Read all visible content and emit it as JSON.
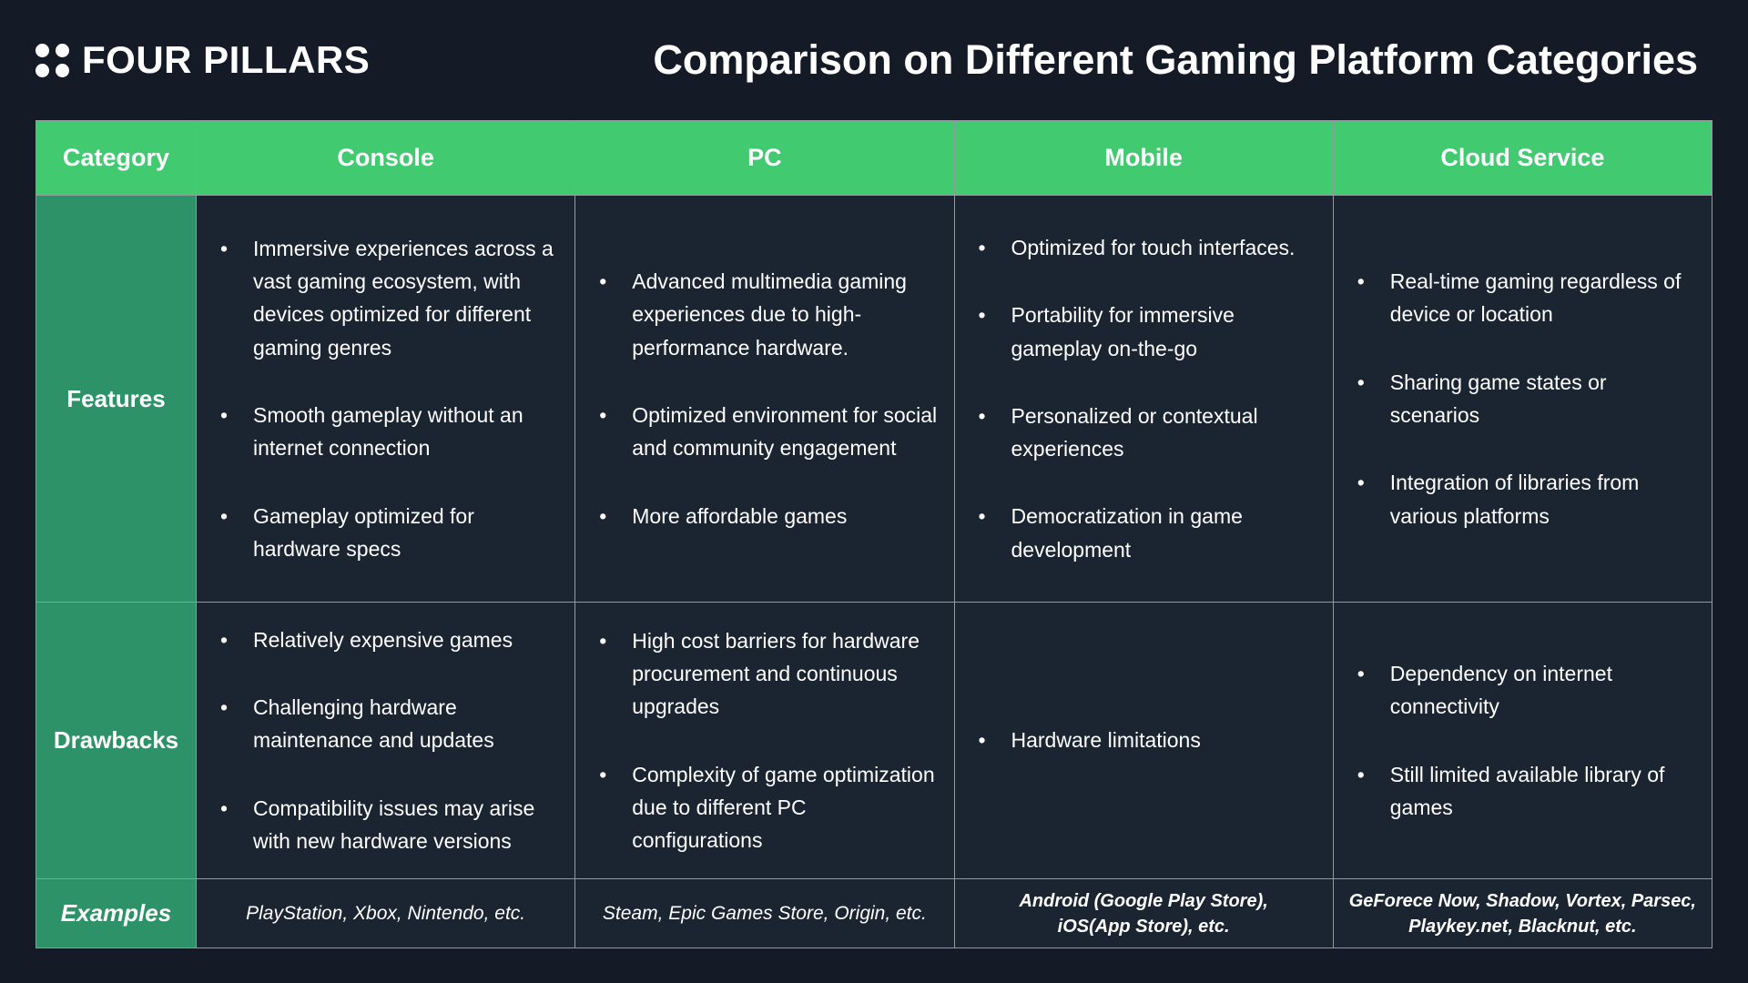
{
  "header": {
    "logo_text": "FOUR PILLARS",
    "title": "Comparison on Different Gaming Platform Categories"
  },
  "colors": {
    "background": "#151b26",
    "cell_background": "#1b2431",
    "header_green": "#41ca70",
    "category_green": "#2e9268",
    "grid_line": "#939aa1",
    "text": "#ffffff"
  },
  "table": {
    "columns": [
      "Category",
      "Console",
      "PC",
      "Mobile",
      "Cloud Service"
    ],
    "features": {
      "label": "Features",
      "console": [
        "Immersive experiences across a vast gaming ecosystem, with devices optimized for different gaming genres",
        "Smooth gameplay without an internet connection",
        "Gameplay optimized for hardware specs"
      ],
      "pc": [
        "Advanced multimedia gaming experiences due to high-performance hardware.",
        "Optimized environment for social and community engagement",
        "More affordable games"
      ],
      "mobile": [
        "Optimized for touch interfaces.",
        "Portability for immersive gameplay on-the-go",
        "Personalized or contextual experiences",
        "Democratization in game development"
      ],
      "cloud": [
        "Real-time gaming regardless of device or location",
        "Sharing game states or scenarios",
        "Integration of libraries from various platforms"
      ]
    },
    "drawbacks": {
      "label": "Drawbacks",
      "console": [
        "Relatively expensive games",
        "Challenging hardware maintenance and updates",
        "Compatibility issues may arise with new hardware versions"
      ],
      "pc": [
        "High cost barriers for hardware procurement and continuous upgrades",
        "Complexity of game optimization due to different PC configurations"
      ],
      "mobile": [
        "Hardware limitations"
      ],
      "cloud": [
        "Dependency on internet connectivity",
        "Still limited available library of games"
      ]
    },
    "examples": {
      "label": "Examples",
      "console": "PlayStation, Xbox, Nintendo, etc.",
      "pc": "Steam, Epic Games Store, Origin, etc.",
      "mobile": "Android (Google Play Store),\niOS(App Store), etc.",
      "cloud": "GeForece Now, Shadow, Vortex, Parsec,\nPlaykey.net, Blacknut, etc."
    }
  }
}
